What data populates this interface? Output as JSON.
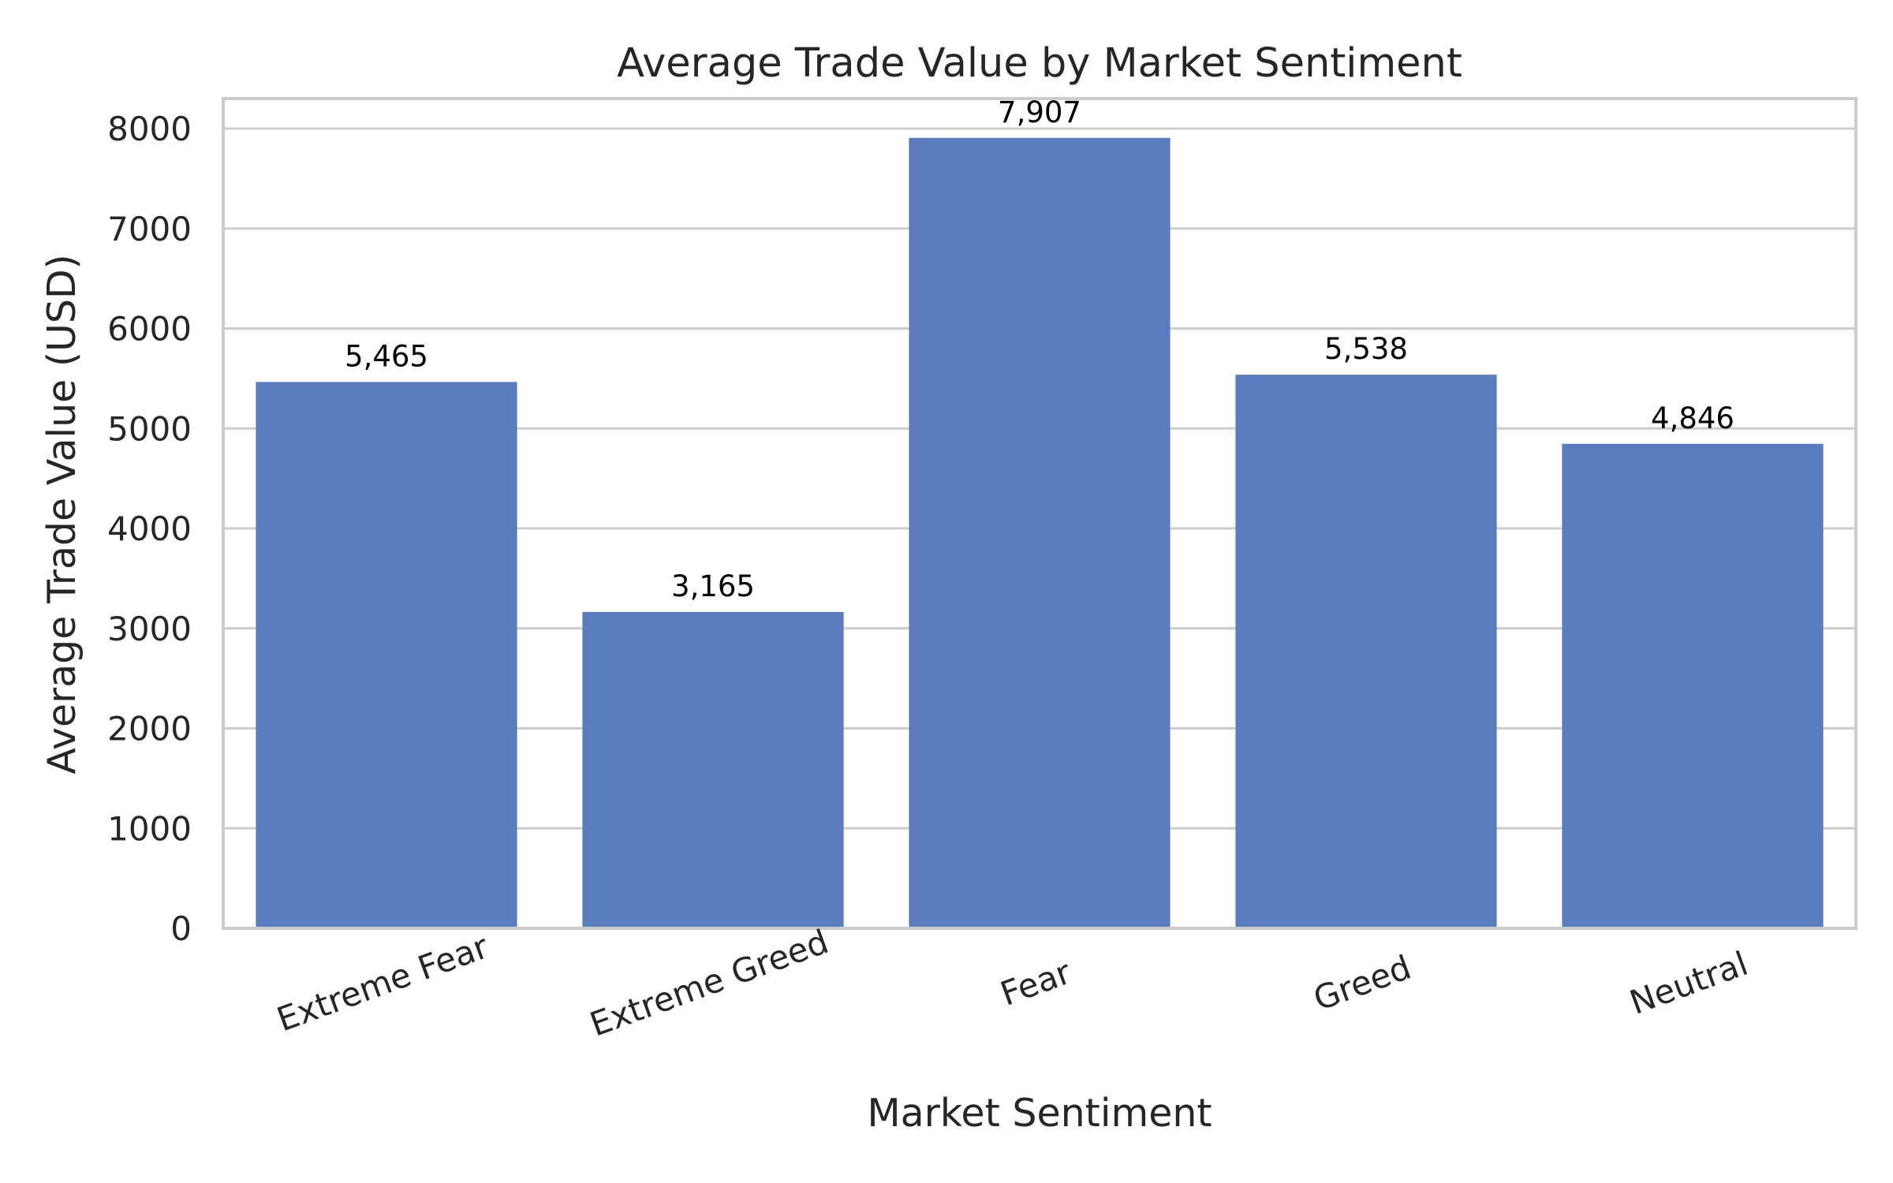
{
  "chart_data": {
    "type": "bar",
    "title": "Average Trade Value by Market Sentiment",
    "xlabel": "Market Sentiment",
    "ylabel": "Average Trade Value (USD)",
    "categories": [
      "Extreme Fear",
      "Extreme Greed",
      "Fear",
      "Greed",
      "Neutral"
    ],
    "values": [
      5465,
      3165,
      7907,
      5538,
      4846
    ],
    "data_labels": [
      "5,465",
      "3,165",
      "7,907",
      "5,538",
      "4,846"
    ],
    "ylim": [
      0,
      8300
    ],
    "yticks": [
      0,
      1000,
      2000,
      3000,
      4000,
      5000,
      6000,
      7000,
      8000
    ],
    "grid": "horizontal",
    "x_tick_rotation_deg": -20,
    "colors": {
      "bar": "#5B7DBF",
      "grid": "#CCCCCC",
      "axes_edge": "#CCCCCC",
      "text": "#262626",
      "data_label": "#000000",
      "background": "#FFFFFF"
    }
  }
}
